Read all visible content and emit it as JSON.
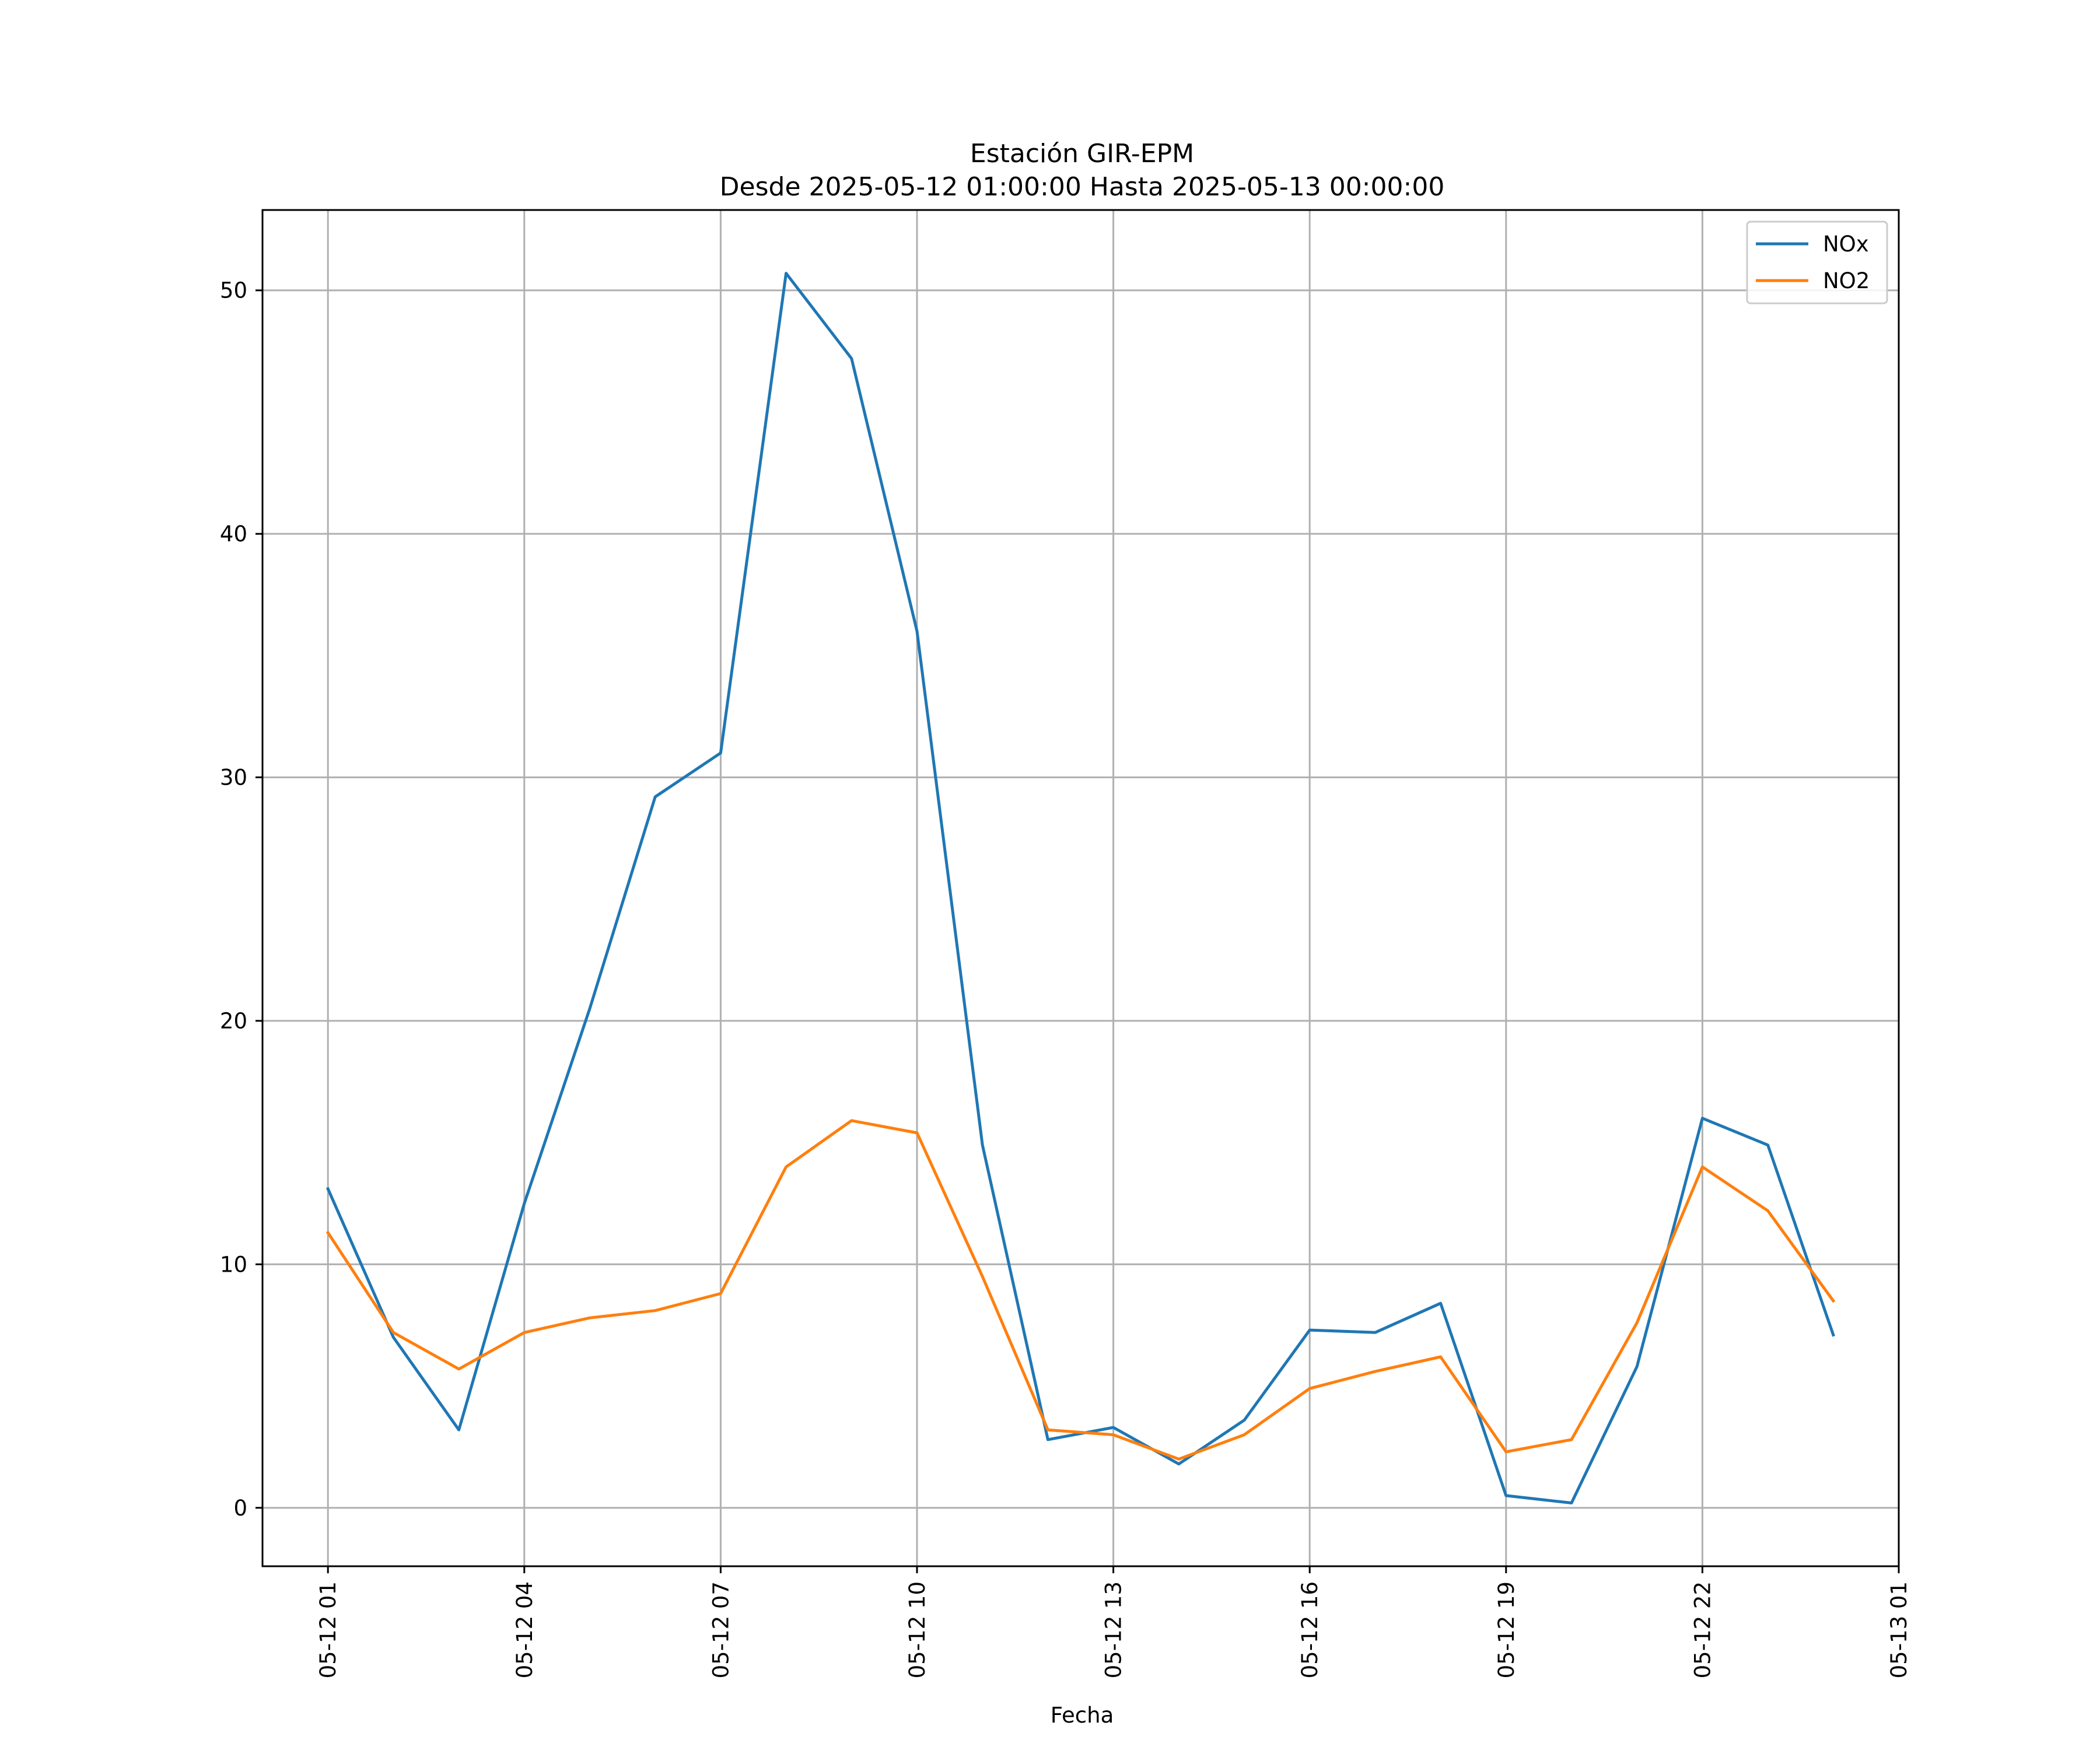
{
  "chart_data": {
    "type": "line",
    "title": "Estación GIR-EPM",
    "subtitle": "Desde 2025-05-12 01:00:00 Hasta 2025-05-13 00:00:00",
    "xlabel": "Fecha",
    "ylabel": "",
    "x": [
      "2025-05-12 01:00",
      "2025-05-12 02:00",
      "2025-05-12 03:00",
      "2025-05-12 04:00",
      "2025-05-12 05:00",
      "2025-05-12 06:00",
      "2025-05-12 07:00",
      "2025-05-12 08:00",
      "2025-05-12 09:00",
      "2025-05-12 10:00",
      "2025-05-12 11:00",
      "2025-05-12 12:00",
      "2025-05-12 13:00",
      "2025-05-12 14:00",
      "2025-05-12 15:00",
      "2025-05-12 16:00",
      "2025-05-12 17:00",
      "2025-05-12 18:00",
      "2025-05-12 19:00",
      "2025-05-12 20:00",
      "2025-05-12 21:00",
      "2025-05-12 22:00",
      "2025-05-12 23:00",
      "2025-05-13 00:00"
    ],
    "series": [
      {
        "name": "NOx",
        "color": "#1f77b4",
        "values": [
          13.1,
          7.0,
          3.2,
          12.5,
          20.5,
          29.2,
          31.0,
          50.7,
          47.2,
          36.0,
          14.9,
          2.8,
          3.3,
          1.8,
          3.6,
          7.3,
          7.2,
          8.4,
          0.5,
          0.2,
          5.8,
          16.0,
          14.9,
          7.1
        ]
      },
      {
        "name": "NO2",
        "color": "#ff7f0e",
        "values": [
          11.3,
          7.2,
          5.7,
          7.2,
          7.8,
          8.1,
          8.8,
          14.0,
          15.9,
          15.4,
          9.5,
          3.2,
          3.0,
          2.0,
          3.0,
          4.9,
          5.6,
          6.2,
          2.3,
          2.8,
          7.6,
          14.0,
          12.2,
          8.5
        ]
      }
    ],
    "x_ticks": [
      "05-12 01",
      "05-12 04",
      "05-12 07",
      "05-12 10",
      "05-12 13",
      "05-12 16",
      "05-12 19",
      "05-12 22",
      "05-13 01"
    ],
    "y_ticks": [
      "0",
      "10",
      "20",
      "30",
      "40",
      "50"
    ],
    "ylim": [
      -2.4,
      53.3
    ],
    "xlim": [
      "2025-05-12 00:00",
      "2025-05-13 01:00"
    ],
    "grid": true,
    "legend_position": "top-right"
  }
}
